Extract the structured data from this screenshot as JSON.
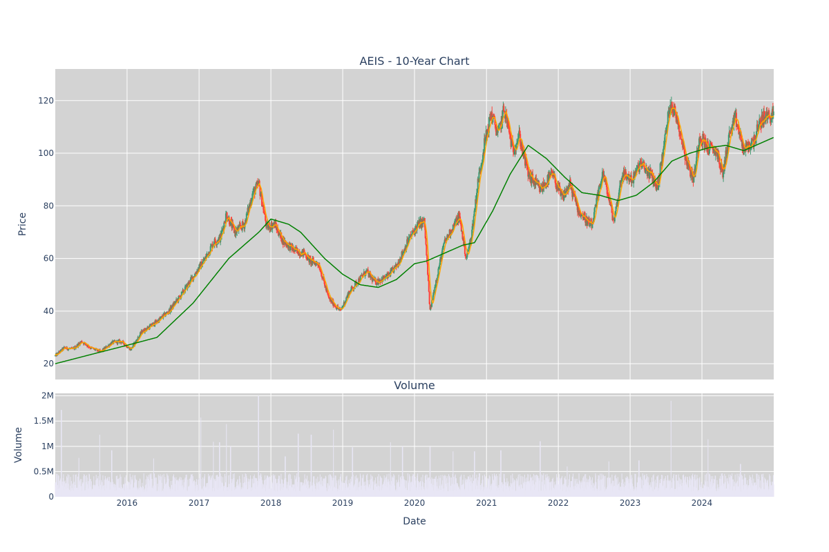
{
  "chart_data": [
    {
      "type": "candlestick",
      "title": "AEIS - 10-Year Chart",
      "ylabel": "Price",
      "xlim": [
        "2015-01-01",
        "2024-12-31"
      ],
      "ylim": [
        14,
        132
      ],
      "y_ticks": [
        20,
        40,
        60,
        80,
        100,
        120
      ],
      "x_ticks": [
        "2016",
        "2017",
        "2018",
        "2019",
        "2020",
        "2021",
        "2022",
        "2023",
        "2024"
      ],
      "grid": true,
      "colors": {
        "up": "#3d9970",
        "down": "#ff4136",
        "ma_short": "#ffa500",
        "ma_long": "#008000",
        "plot_bg": "#d3d3d3"
      },
      "price_anchors": [
        [
          "2015-01-01",
          23
        ],
        [
          "2015-02-15",
          26
        ],
        [
          "2015-04-01",
          25.5
        ],
        [
          "2015-05-15",
          28.5
        ],
        [
          "2015-07-01",
          26
        ],
        [
          "2015-08-20",
          24.5
        ],
        [
          "2015-10-15",
          28
        ],
        [
          "2015-12-01",
          28.5
        ],
        [
          "2016-01-20",
          25.5
        ],
        [
          "2016-03-15",
          32
        ],
        [
          "2016-06-01",
          36
        ],
        [
          "2016-08-01",
          40
        ],
        [
          "2016-10-01",
          46
        ],
        [
          "2016-12-01",
          53
        ],
        [
          "2017-02-01",
          60
        ],
        [
          "2017-03-15",
          66
        ],
        [
          "2017-04-20",
          68
        ],
        [
          "2017-05-20",
          77
        ],
        [
          "2017-07-01",
          70
        ],
        [
          "2017-08-20",
          73
        ],
        [
          "2017-10-01",
          85
        ],
        [
          "2017-11-01",
          88
        ],
        [
          "2017-12-10",
          72
        ],
        [
          "2018-01-20",
          73
        ],
        [
          "2018-03-01",
          67
        ],
        [
          "2018-05-01",
          63
        ],
        [
          "2018-06-20",
          62
        ],
        [
          "2018-07-20",
          59
        ],
        [
          "2018-09-01",
          58
        ],
        [
          "2018-10-20",
          45
        ],
        [
          "2018-12-20",
          40
        ],
        [
          "2019-02-01",
          47
        ],
        [
          "2019-03-15",
          51
        ],
        [
          "2019-05-01",
          55
        ],
        [
          "2019-06-15",
          51
        ],
        [
          "2019-08-15",
          53
        ],
        [
          "2019-10-01",
          57
        ],
        [
          "2019-12-01",
          67
        ],
        [
          "2020-01-20",
          73
        ],
        [
          "2020-02-20",
          74
        ],
        [
          "2020-03-20",
          40
        ],
        [
          "2020-04-20",
          52
        ],
        [
          "2020-06-01",
          66
        ],
        [
          "2020-07-15",
          72
        ],
        [
          "2020-08-15",
          76
        ],
        [
          "2020-09-20",
          60
        ],
        [
          "2020-10-15",
          68
        ],
        [
          "2020-11-20",
          90
        ],
        [
          "2020-12-20",
          103
        ],
        [
          "2021-01-25",
          115
        ],
        [
          "2021-03-01",
          107
        ],
        [
          "2021-04-01",
          117
        ],
        [
          "2021-05-15",
          101
        ],
        [
          "2021-06-15",
          107
        ],
        [
          "2021-08-01",
          92
        ],
        [
          "2021-10-01",
          86
        ],
        [
          "2021-12-01",
          92
        ],
        [
          "2022-01-20",
          83
        ],
        [
          "2022-03-01",
          88
        ],
        [
          "2022-04-15",
          78
        ],
        [
          "2022-06-20",
          72
        ],
        [
          "2022-08-15",
          93
        ],
        [
          "2022-10-10",
          74
        ],
        [
          "2022-11-20",
          92
        ],
        [
          "2023-01-15",
          90
        ],
        [
          "2023-02-20",
          96
        ],
        [
          "2023-04-15",
          92
        ],
        [
          "2023-05-20",
          87
        ],
        [
          "2023-06-20",
          102
        ],
        [
          "2023-07-25",
          120
        ],
        [
          "2023-09-01",
          112
        ],
        [
          "2023-10-15",
          97
        ],
        [
          "2023-11-20",
          90
        ],
        [
          "2023-12-20",
          107
        ],
        [
          "2024-02-01",
          102
        ],
        [
          "2024-03-15",
          101
        ],
        [
          "2024-04-15",
          92
        ],
        [
          "2024-05-20",
          107
        ],
        [
          "2024-06-20",
          113
        ],
        [
          "2024-08-01",
          101
        ],
        [
          "2024-09-15",
          104
        ],
        [
          "2024-11-01",
          113
        ],
        [
          "2024-12-31",
          115
        ]
      ],
      "ma_long_anchors": [
        [
          "2015-01-01",
          20
        ],
        [
          "2015-07-01",
          23.5
        ],
        [
          "2016-01-01",
          27
        ],
        [
          "2016-06-01",
          30
        ],
        [
          "2016-12-01",
          43
        ],
        [
          "2017-06-01",
          60
        ],
        [
          "2017-11-01",
          70
        ],
        [
          "2018-01-01",
          75
        ],
        [
          "2018-04-01",
          73
        ],
        [
          "2018-06-01",
          70
        ],
        [
          "2018-10-01",
          60
        ],
        [
          "2019-01-01",
          54
        ],
        [
          "2019-04-01",
          50
        ],
        [
          "2019-07-01",
          49
        ],
        [
          "2019-10-01",
          52
        ],
        [
          "2020-01-01",
          58
        ],
        [
          "2020-03-01",
          59
        ],
        [
          "2020-06-01",
          62
        ],
        [
          "2020-09-01",
          65
        ],
        [
          "2020-11-01",
          66
        ],
        [
          "2021-02-01",
          78
        ],
        [
          "2021-05-01",
          92
        ],
        [
          "2021-08-01",
          103
        ],
        [
          "2021-11-01",
          98
        ],
        [
          "2022-02-01",
          91
        ],
        [
          "2022-05-01",
          85
        ],
        [
          "2022-08-01",
          84
        ],
        [
          "2022-11-01",
          82
        ],
        [
          "2023-02-01",
          84
        ],
        [
          "2023-05-01",
          89
        ],
        [
          "2023-08-01",
          97
        ],
        [
          "2023-11-01",
          100
        ],
        [
          "2024-02-01",
          102
        ],
        [
          "2024-05-01",
          103
        ],
        [
          "2024-08-01",
          101
        ],
        [
          "2024-12-31",
          106
        ]
      ]
    },
    {
      "type": "bar",
      "title": "Volume",
      "ylabel": "Volume",
      "xlabel": "Date",
      "xlim": [
        "2015-01-01",
        "2024-12-31"
      ],
      "ylim": [
        0,
        2050000
      ],
      "y_ticks": [
        {
          "value": 0,
          "label": "0"
        },
        {
          "value": 500000,
          "label": "0.5M"
        },
        {
          "value": 1000000,
          "label": "1M"
        },
        {
          "value": 1500000,
          "label": "1.5M"
        },
        {
          "value": 2000000,
          "label": "2M"
        }
      ],
      "x_ticks": [
        "2016",
        "2017",
        "2018",
        "2019",
        "2020",
        "2021",
        "2022",
        "2023",
        "2024"
      ],
      "colors": {
        "bar": "#e8e6f5"
      },
      "base_level": 300000,
      "spikes": [
        [
          "2015-02-01",
          1720000
        ],
        [
          "2015-05-01",
          770000
        ],
        [
          "2015-08-15",
          1230000
        ],
        [
          "2015-10-15",
          920000
        ],
        [
          "2016-05-15",
          760000
        ],
        [
          "2017-01-10",
          1570000
        ],
        [
          "2017-03-15",
          1090000
        ],
        [
          "2017-04-15",
          1080000
        ],
        [
          "2017-05-20",
          1440000
        ],
        [
          "2017-06-10",
          1000000
        ],
        [
          "2017-10-30",
          2000000
        ],
        [
          "2018-03-15",
          800000
        ],
        [
          "2018-05-20",
          1250000
        ],
        [
          "2018-07-25",
          1230000
        ],
        [
          "2018-11-15",
          1330000
        ],
        [
          "2019-02-20",
          980000
        ],
        [
          "2019-09-01",
          1080000
        ],
        [
          "2019-11-01",
          1000000
        ],
        [
          "2020-03-20",
          990000
        ],
        [
          "2020-07-15",
          900000
        ],
        [
          "2020-11-01",
          900000
        ],
        [
          "2021-03-15",
          920000
        ],
        [
          "2021-10-01",
          1100000
        ],
        [
          "2022-02-15",
          600000
        ],
        [
          "2022-09-15",
          700000
        ],
        [
          "2023-02-15",
          720000
        ],
        [
          "2023-07-28",
          1900000
        ],
        [
          "2024-02-01",
          1140000
        ],
        [
          "2024-07-15",
          650000
        ]
      ]
    }
  ]
}
